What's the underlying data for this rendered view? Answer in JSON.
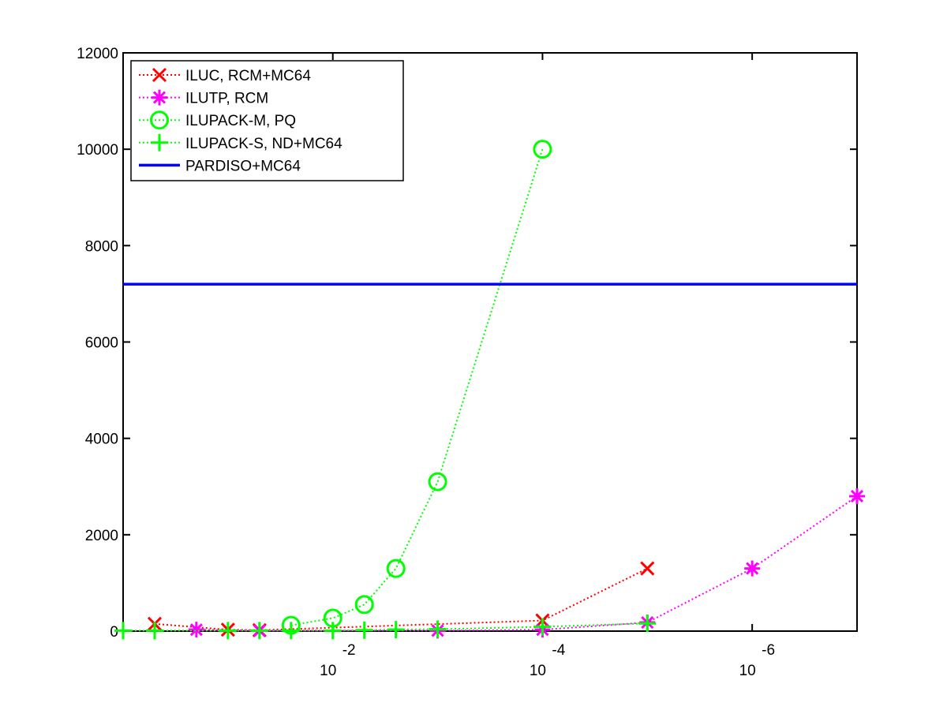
{
  "chart_data": {
    "type": "line",
    "title": "",
    "xlabel": "",
    "ylabel": "",
    "x_scale": "log",
    "x_reversed": true,
    "xlim": [
      1,
      1e-07
    ],
    "ylim": [
      0,
      12000
    ],
    "grid": false,
    "legend_position": "top-left",
    "x_ticks": [
      {
        "value": 0.01,
        "base": "10",
        "exponent": "-2"
      },
      {
        "value": 0.0001,
        "base": "10",
        "exponent": "-4"
      },
      {
        "value": 1e-06,
        "base": "10",
        "exponent": "-6"
      }
    ],
    "y_ticks": [
      {
        "value": 0,
        "label": "0"
      },
      {
        "value": 2000,
        "label": "2000"
      },
      {
        "value": 4000,
        "label": "4000"
      },
      {
        "value": 6000,
        "label": "6000"
      },
      {
        "value": 8000,
        "label": "8000"
      },
      {
        "value": 10000,
        "label": "10000"
      },
      {
        "value": 12000,
        "label": "12000"
      }
    ],
    "series": [
      {
        "name": "ILUC, RCM+MC64",
        "color": "#ff0000",
        "marker": "x",
        "line": "dotted",
        "points": [
          [
            0.5,
            150
          ],
          [
            0.1,
            30
          ],
          [
            0.05,
            20
          ],
          [
            0.0001,
            220
          ],
          [
            1e-05,
            1300
          ]
        ]
      },
      {
        "name": "ILUTP, RCM",
        "color": "#ff00ff",
        "marker": "star",
        "line": "dotted",
        "points": [
          [
            0.2,
            30
          ],
          [
            0.05,
            10
          ],
          [
            0.001,
            10
          ],
          [
            0.0001,
            30
          ],
          [
            1e-05,
            180
          ],
          [
            1e-06,
            1300
          ],
          [
            1e-07,
            2800
          ]
        ]
      },
      {
        "name": "ILUPACK-M, PQ",
        "color": "#00ff00",
        "marker": "circle",
        "line": "dotted",
        "points": [
          [
            0.025,
            120
          ],
          [
            0.01,
            270
          ],
          [
            0.005,
            550
          ],
          [
            0.0025,
            1300
          ],
          [
            0.001,
            3100
          ],
          [
            0.0001,
            10000
          ]
        ]
      },
      {
        "name": "ILUPACK-S, ND+MC64",
        "color": "#00ff00",
        "marker": "plus",
        "line": "dotted",
        "points": [
          [
            1,
            10
          ],
          [
            0.5,
            10
          ],
          [
            0.1,
            10
          ],
          [
            0.05,
            10
          ],
          [
            0.025,
            10
          ],
          [
            0.01,
            10
          ],
          [
            0.005,
            20
          ],
          [
            0.0025,
            30
          ],
          [
            0.001,
            40
          ],
          [
            0.0001,
            90
          ],
          [
            1e-05,
            160
          ]
        ]
      },
      {
        "name": "PARDISO+MC64",
        "color": "#0000ff",
        "marker": "none",
        "line": "solid",
        "points": [
          [
            1,
            7200
          ],
          [
            1e-07,
            7200
          ]
        ]
      }
    ]
  }
}
